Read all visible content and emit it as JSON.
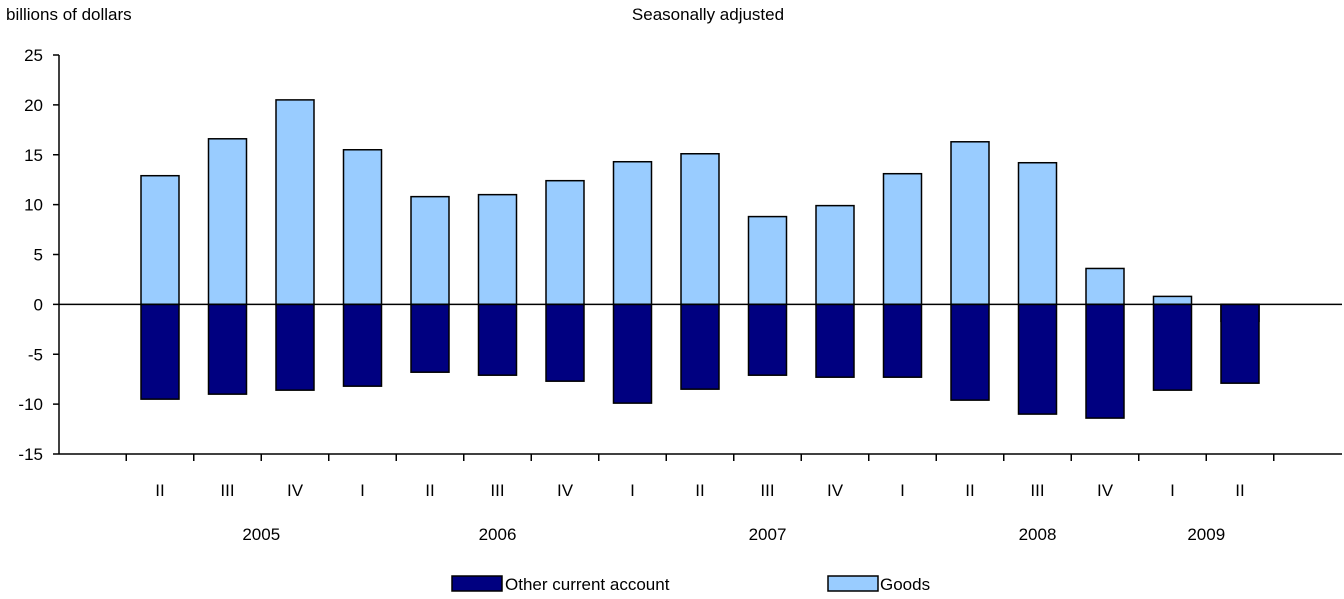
{
  "chart_data": {
    "type": "bar",
    "stacked": true,
    "title": "Seasonally adjusted",
    "ylabel": "billions of dollars",
    "xlabel": "",
    "ylim": [
      -15,
      25
    ],
    "yticks": [
      25,
      20,
      15,
      10,
      5,
      0,
      -5,
      -10,
      -15
    ],
    "ytick_labels": [
      "25",
      "20",
      "15",
      "10",
      "5",
      "0",
      "-5",
      "-10",
      "-15"
    ],
    "categories": [
      "II",
      "III",
      "IV",
      "I",
      "II",
      "III",
      "IV",
      "I",
      "II",
      "III",
      "IV",
      "I",
      "II",
      "III",
      "IV",
      "I",
      "II"
    ],
    "year_labels": [
      {
        "label": "2005",
        "quarter_index": 1.5
      },
      {
        "label": "2006",
        "quarter_index": 5
      },
      {
        "label": "2007",
        "quarter_index": 9
      },
      {
        "label": "2008",
        "quarter_index": 13
      },
      {
        "label": "2009",
        "quarter_index": 15.5
      }
    ],
    "series": [
      {
        "name": "Goods",
        "color": "#99ccff",
        "values": [
          12.9,
          16.6,
          20.5,
          15.5,
          10.8,
          11.0,
          12.4,
          14.3,
          15.1,
          8.8,
          9.9,
          13.1,
          16.3,
          14.2,
          3.6,
          0.8,
          -1.7
        ]
      },
      {
        "name": "Other current account",
        "color": "#000080",
        "values": [
          -9.5,
          -9.0,
          -8.6,
          -8.2,
          -6.8,
          -7.1,
          -7.7,
          -9.9,
          -8.5,
          -7.1,
          -7.3,
          -7.3,
          -9.6,
          -11.0,
          -11.4,
          -8.6,
          -7.9
        ]
      }
    ],
    "legend": [
      {
        "name": "Other current account",
        "color": "#000080"
      },
      {
        "name": "Goods",
        "color": "#99ccff"
      }
    ],
    "legend_position": "bottom",
    "grid": false
  }
}
